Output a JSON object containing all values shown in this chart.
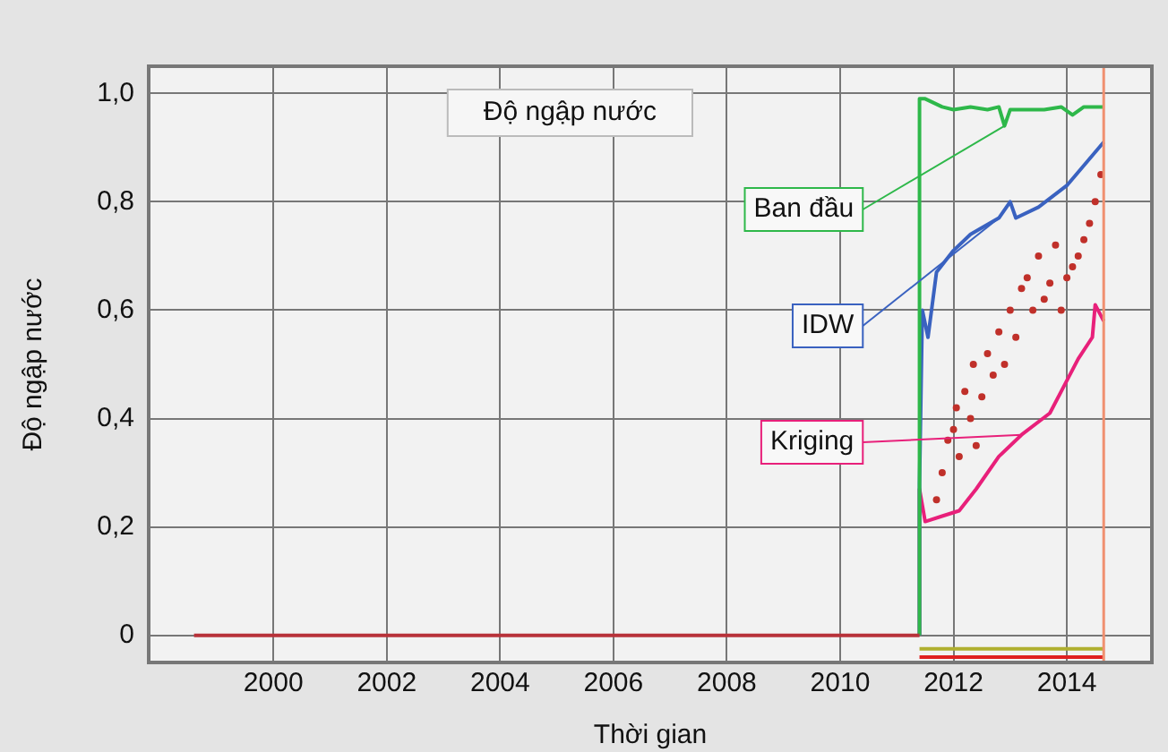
{
  "chart_data": {
    "type": "line",
    "title": "Độ ngập nước",
    "xlabel": "Thời gian",
    "ylabel": "Độ ngập nước",
    "xlim": [
      1997.8,
      2015.5
    ],
    "xticks": [
      2000,
      2002,
      2004,
      2006,
      2008,
      2010,
      2012,
      2014
    ],
    "ylim": [
      -0.05,
      1.05
    ],
    "yticks": [
      0,
      {
        "value": 0.2,
        "label": "0,2"
      },
      {
        "value": 0.4,
        "label": "0,4"
      },
      {
        "value": 0.6,
        "label": "0,6"
      },
      {
        "value": 0.8,
        "label": "0,8"
      },
      {
        "value": 1,
        "label": "1,0"
      }
    ],
    "grid": true,
    "legend": false,
    "marker": "none",
    "ref_lines": [
      {
        "axis": "x",
        "value": 2014.65,
        "color": "#f09070"
      }
    ],
    "series": [
      {
        "color": "#b8323a",
        "x": [
          1998.6,
          2011.4
        ],
        "values": [
          0,
          0
        ]
      },
      {
        "color": "#b0b030",
        "x": [
          2011.4,
          2014.65
        ],
        "values": [
          -0.025,
          -0.025
        ]
      },
      {
        "color": "#e02020",
        "x": [
          2011.4,
          2014.65
        ],
        "values": [
          -0.04,
          -0.04
        ]
      },
      {
        "name": "Ban đầu",
        "color": "#2eb84a",
        "x": [
          2011.4,
          2011.4,
          2011.5,
          2011.8,
          2012,
          2012.3,
          2012.6,
          2012.8,
          2012.9,
          2013,
          2013.3,
          2013.6,
          2013.9,
          2014.1,
          2014.3,
          2014.65
        ],
        "values": [
          0,
          0.99,
          0.99,
          0.975,
          0.97,
          0.975,
          0.97,
          0.975,
          0.94,
          0.97,
          0.97,
          0.97,
          0.975,
          0.96,
          0.975,
          0.975
        ]
      },
      {
        "name": "IDW",
        "color": "#3a62c0",
        "x": [
          2011.4,
          2011.4,
          2011.45,
          2011.55,
          2011.7,
          2012,
          2012.3,
          2012.8,
          2013,
          2013.1,
          2013.5,
          2014,
          2014.65
        ],
        "values": [
          0,
          0.28,
          0.6,
          0.55,
          0.67,
          0.71,
          0.74,
          0.77,
          0.8,
          0.77,
          0.79,
          0.83,
          0.91
        ]
      },
      {
        "name": "Kriging",
        "color": "#e8207a",
        "x": [
          2011.4,
          2011.4,
          2011.5,
          2011.8,
          2012.1,
          2012.4,
          2012.8,
          2013.2,
          2013.7,
          2014,
          2014.2,
          2014.45,
          2014.5,
          2014.65
        ],
        "values": [
          0,
          0.27,
          0.21,
          0.22,
          0.23,
          0.27,
          0.33,
          0.37,
          0.41,
          0.47,
          0.51,
          0.55,
          0.61,
          0.58
        ]
      },
      {
        "type": "scatter",
        "marker": "circle",
        "color": "#c0302a",
        "x": [
          2011.7,
          2011.8,
          2011.9,
          2012,
          2012.05,
          2012.1,
          2012.2,
          2012.3,
          2012.35,
          2012.4,
          2012.5,
          2012.6,
          2012.7,
          2012.8,
          2012.9,
          2013,
          2013.1,
          2013.2,
          2013.3,
          2013.4,
          2013.5,
          2013.6,
          2013.7,
          2013.8,
          2013.9,
          2014,
          2014.1,
          2014.2,
          2014.3,
          2014.4,
          2014.5,
          2014.6
        ],
        "values": [
          0.25,
          0.3,
          0.36,
          0.38,
          0.42,
          0.33,
          0.45,
          0.4,
          0.5,
          0.35,
          0.44,
          0.52,
          0.48,
          0.56,
          0.5,
          0.6,
          0.55,
          0.64,
          0.66,
          0.6,
          0.7,
          0.62,
          0.65,
          0.72,
          0.6,
          0.66,
          0.68,
          0.7,
          0.73,
          0.76,
          0.8,
          0.85
        ]
      }
    ]
  }
}
